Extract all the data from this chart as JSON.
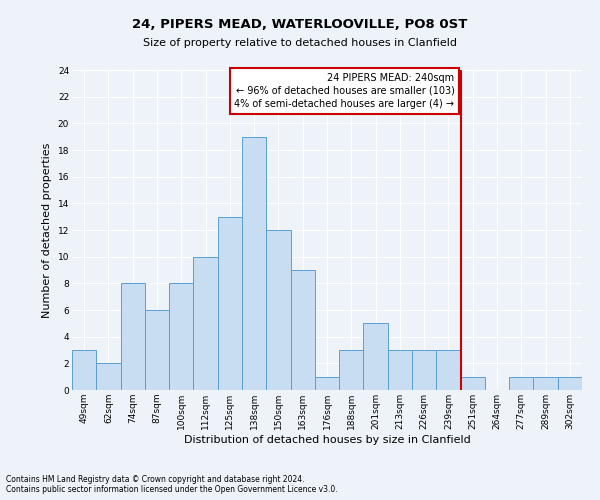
{
  "title1": "24, PIPERS MEAD, WATERLOOVILLE, PO8 0ST",
  "title2": "Size of property relative to detached houses in Clanfield",
  "xlabel": "Distribution of detached houses by size in Clanfield",
  "ylabel": "Number of detached properties",
  "footnote1": "Contains HM Land Registry data © Crown copyright and database right 2024.",
  "footnote2": "Contains public sector information licensed under the Open Government Licence v3.0.",
  "categories": [
    "49sqm",
    "62sqm",
    "74sqm",
    "87sqm",
    "100sqm",
    "112sqm",
    "125sqm",
    "138sqm",
    "150sqm",
    "163sqm",
    "176sqm",
    "188sqm",
    "201sqm",
    "213sqm",
    "226sqm",
    "239sqm",
    "251sqm",
    "264sqm",
    "277sqm",
    "289sqm",
    "302sqm"
  ],
  "values": [
    3,
    2,
    8,
    6,
    8,
    10,
    13,
    19,
    12,
    9,
    1,
    3,
    5,
    3,
    3,
    3,
    1,
    0,
    1,
    1,
    1
  ],
  "bar_color": "#c9ddf2",
  "bar_edge_color": "#5a9fd4",
  "annotation_line1": "24 PIPERS MEAD: 240sqm",
  "annotation_line2": "← 96% of detached houses are smaller (103)",
  "annotation_line3": "4% of semi-detached houses are larger (4) →",
  "vline_x_index": 15,
  "vline_color": "#cc0000",
  "annotation_box_color": "#cc0000",
  "ylim": [
    0,
    24
  ],
  "yticks": [
    0,
    2,
    4,
    6,
    8,
    10,
    12,
    14,
    16,
    18,
    20,
    22,
    24
  ],
  "bg_color": "#eef2f9",
  "grid_color": "#ffffff",
  "title1_fontsize": 9.5,
  "title2_fontsize": 8,
  "ylabel_fontsize": 8,
  "xlabel_fontsize": 8,
  "tick_fontsize": 6.5,
  "footnote_fontsize": 5.5,
  "annot_fontsize": 7
}
